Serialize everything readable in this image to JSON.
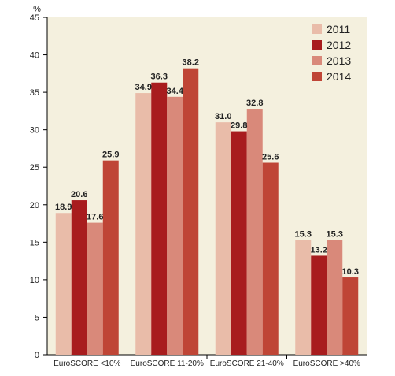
{
  "chart_data": {
    "type": "bar",
    "ylabel": "%",
    "ylim": [
      0,
      45
    ],
    "yticks": [
      0,
      5,
      10,
      15,
      20,
      25,
      30,
      35,
      40,
      45
    ],
    "categories": [
      "EuroSCORE <10%",
      "EuroSCORE 11-20%",
      "EuroSCORE 21-40%",
      "EuroSCORE >40%"
    ],
    "series": [
      {
        "name": "2011",
        "color": "#e9bca9",
        "values": [
          18.9,
          34.9,
          31.0,
          15.3
        ],
        "labels": [
          "18.9",
          "34.9",
          "31.0",
          "15.3"
        ]
      },
      {
        "name": "2012",
        "color": "#a81c1e",
        "values": [
          20.6,
          36.3,
          29.8,
          13.2
        ],
        "labels": [
          "20.6",
          "36.3",
          "29.8",
          "13.2"
        ]
      },
      {
        "name": "2013",
        "color": "#d9897a",
        "values": [
          17.6,
          34.4,
          32.8,
          15.3
        ],
        "labels": [
          "17.6",
          "34.4",
          "32.8",
          "15.3"
        ]
      },
      {
        "name": "2014",
        "color": "#bf4536",
        "values": [
          25.9,
          38.2,
          25.6,
          10.3
        ],
        "labels": [
          "25.9",
          "38.2",
          "25.6",
          "10.3"
        ]
      }
    ],
    "legend_position": "top-right",
    "background": "#f4f0de",
    "grid": false
  }
}
